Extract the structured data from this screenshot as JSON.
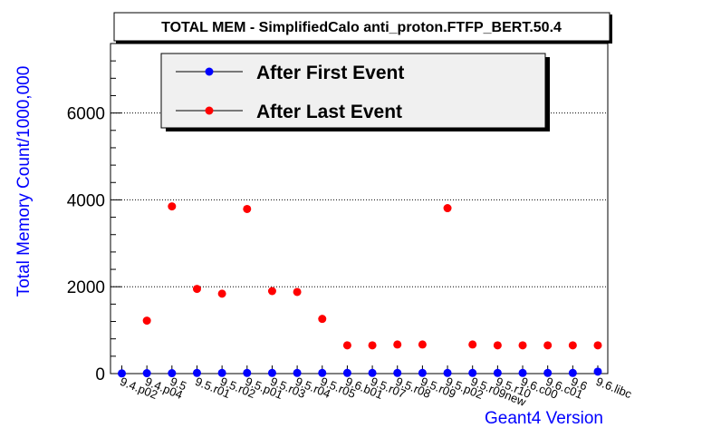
{
  "chart_data": {
    "type": "scatter",
    "title": "TOTAL MEM - SimplifiedCalo anti_proton.FTFP_BERT.50.4",
    "xlabel": "Geant4 Version",
    "ylabel": "Total Memory Count/1000,000",
    "ylim": [
      0,
      7600
    ],
    "yticks": [
      0,
      2000,
      4000,
      6000
    ],
    "grid": "horizontal dotted at y ticks",
    "legend_position": "top-left",
    "categories": [
      "9.4.p02",
      "9.4.p04",
      "9.5",
      "9.5.r01",
      "9.5.r02",
      "9.5.p01",
      "9.5.r03",
      "9.5.r04",
      "9.5.r05",
      "9.6.b01",
      "9.5.r07",
      "9.5.r08",
      "9.5.r09",
      "9.5.p02",
      "9.5.r09new",
      "9.5.r10",
      "9.6.c00",
      "9.6.c01",
      "9.6",
      "9.6.libc"
    ],
    "series": [
      {
        "name": "After First Event",
        "color": "#0000ff",
        "values": [
          5,
          10,
          10,
          15,
          15,
          15,
          15,
          15,
          15,
          15,
          15,
          15,
          15,
          15,
          15,
          15,
          15,
          15,
          15,
          45
        ]
      },
      {
        "name": "After Last Event",
        "color": "#ff0000",
        "values": [
          null,
          1220,
          3850,
          1950,
          1840,
          3790,
          1900,
          1880,
          1260,
          650,
          650,
          670,
          670,
          3810,
          670,
          650,
          650,
          650,
          650,
          650
        ]
      }
    ]
  }
}
